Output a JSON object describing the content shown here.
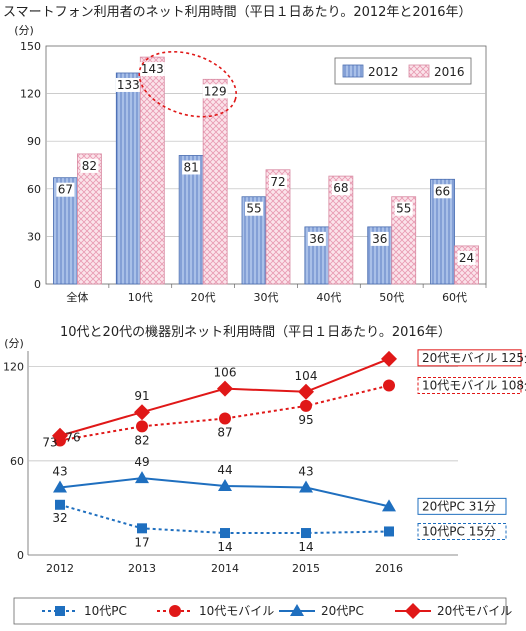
{
  "chart_data": [
    {
      "type": "bar",
      "title": "スマートフォン利用者のネット利用時間（平日１日あたり。2012年と2016年）",
      "ylabel": "(分)",
      "ylim": [
        0,
        150
      ],
      "yticks": [
        "0",
        "30",
        "60",
        "90",
        "120",
        "150"
      ],
      "categories": [
        "全体",
        "10代",
        "20代",
        "30代",
        "40代",
        "50代",
        "60代"
      ],
      "series": [
        {
          "name": "2012",
          "values": [
            67,
            133,
            81,
            55,
            36,
            36,
            66
          ],
          "color": "#7f9fd6"
        },
        {
          "name": "2016",
          "values": [
            82,
            143,
            129,
            72,
            68,
            55,
            24
          ],
          "color": "#f6c8d6"
        }
      ],
      "legend_position": "top-right",
      "highlight": "10代 2016 and 20代 2016 circled with dotted red ellipse"
    },
    {
      "type": "line",
      "title": "10代と20代の機器別ネット利用時間（平日１日あたり。2016年）",
      "ylabel": "(分)",
      "ylim": [
        0,
        130
      ],
      "yticks": [
        "0",
        "60",
        "120"
      ],
      "x": [
        "2012",
        "2013",
        "2014",
        "2015",
        "2016"
      ],
      "series": [
        {
          "name": "10代PC",
          "values": [
            32,
            17,
            14,
            14,
            15
          ],
          "color": "#1f6fbf",
          "style": "dotted",
          "marker": "square"
        },
        {
          "name": "10代モバイル",
          "values": [
            73,
            82,
            87,
            95,
            108
          ],
          "color": "#e01818",
          "style": "dotted",
          "marker": "circle"
        },
        {
          "name": "20代PC",
          "values": [
            43,
            49,
            44,
            43,
            31
          ],
          "color": "#1f6fbf",
          "style": "solid",
          "marker": "triangle"
        },
        {
          "name": "20代モバイル",
          "values": [
            76,
            91,
            106,
            104,
            125
          ],
          "color": "#e01818",
          "style": "solid",
          "marker": "diamond"
        }
      ],
      "shown_labels": {
        "10代PC": [
          "32",
          "17",
          "14",
          "14",
          null
        ],
        "10代モバイル": [
          "73",
          "82",
          "87",
          "95",
          null
        ],
        "20代PC": [
          "43",
          "49",
          "44",
          "43",
          null
        ],
        "20代モバイル": [
          "76",
          "91",
          "106",
          "104",
          null
        ]
      },
      "end_labels": [
        "20代モバイル 125分",
        "10代モバイル 108分",
        "20代PC  31分",
        "10代PC  15分"
      ],
      "legend_position": "bottom"
    }
  ]
}
